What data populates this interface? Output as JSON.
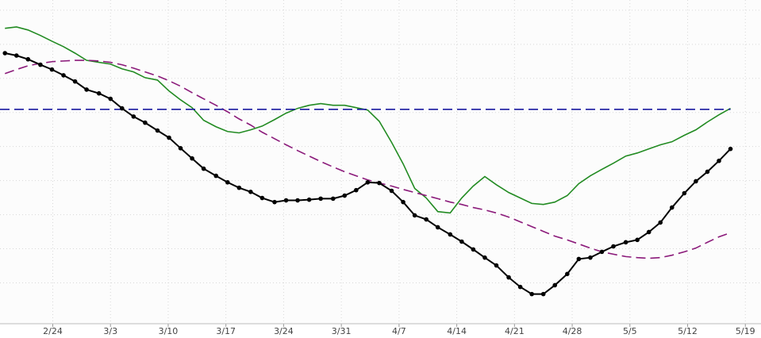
{
  "chart_data": {
    "type": "line",
    "x": [
      -5.8,
      -4.4,
      -3.0,
      -1.5,
      -0.1,
      1.3,
      2.7,
      4.1,
      5.6,
      7.0,
      8.4,
      9.8,
      11.2,
      12.7,
      14.1,
      15.5,
      16.9,
      18.3,
      19.8,
      21.2,
      22.6,
      24.0,
      25.4,
      26.9,
      28.3,
      29.7,
      31.1,
      32.5,
      34.0,
      35.4,
      36.8,
      38.2,
      39.6,
      41.1,
      42.5,
      43.9,
      45.3,
      46.7,
      48.2,
      49.6,
      51.0,
      52.4,
      53.8,
      55.3,
      56.7,
      58.1,
      59.5,
      60.9,
      62.4,
      63.8,
      65.2,
      66.6,
      68.0,
      69.5,
      70.9,
      72.3,
      73.7,
      75.1,
      76.6,
      78.0,
      79.4,
      80.8,
      82.2
    ],
    "series": [
      {
        "color": "#228b22",
        "values": [
          8.47,
          8.51,
          8.42,
          8.26,
          8.09,
          7.93,
          7.74,
          7.53,
          7.47,
          7.42,
          7.28,
          7.19,
          7.02,
          6.95,
          6.63,
          6.37,
          6.14,
          5.77,
          5.58,
          5.44,
          5.4,
          5.49,
          5.6,
          5.79,
          5.98,
          6.12,
          6.21,
          6.26,
          6.21,
          6.21,
          6.14,
          6.07,
          5.74,
          5.12,
          4.49,
          3.77,
          3.49,
          3.09,
          3.05,
          3.49,
          3.84,
          4.12,
          3.88,
          3.65,
          3.49,
          3.33,
          3.3,
          3.37,
          3.56,
          3.91,
          4.14,
          4.33,
          4.51,
          4.72,
          4.81,
          4.93,
          5.05,
          5.14,
          5.33,
          5.49,
          5.72,
          5.93,
          6.12
        ]
      },
      {
        "color": "#8b1a7a",
        "dash": "dashed",
        "values": [
          7.14,
          7.26,
          7.37,
          7.44,
          7.49,
          7.51,
          7.53,
          7.53,
          7.51,
          7.47,
          7.4,
          7.3,
          7.19,
          7.07,
          6.93,
          6.77,
          6.58,
          6.4,
          6.21,
          6.02,
          5.81,
          5.63,
          5.42,
          5.23,
          5.05,
          4.88,
          4.72,
          4.56,
          4.4,
          4.26,
          4.14,
          4.02,
          3.93,
          3.84,
          3.74,
          3.65,
          3.56,
          3.47,
          3.37,
          3.3,
          3.21,
          3.14,
          3.05,
          2.93,
          2.79,
          2.65,
          2.51,
          2.37,
          2.26,
          2.14,
          2.02,
          1.91,
          1.84,
          1.77,
          1.74,
          1.72,
          1.74,
          1.81,
          1.91,
          2.02,
          2.19,
          2.35,
          2.47
        ]
      },
      {
        "color": "#1a1aa0",
        "dash": "dashed",
        "x": [
          -6.4,
          82.2
        ],
        "values": [
          6.09,
          6.09
        ]
      },
      {
        "color": "#000000",
        "markers": true,
        "values": [
          7.74,
          7.67,
          7.56,
          7.4,
          7.26,
          7.09,
          6.91,
          6.67,
          6.56,
          6.4,
          6.12,
          5.88,
          5.7,
          5.47,
          5.26,
          4.95,
          4.65,
          4.35,
          4.14,
          3.95,
          3.79,
          3.67,
          3.49,
          3.37,
          3.42,
          3.42,
          3.44,
          3.47,
          3.47,
          3.56,
          3.72,
          3.95,
          3.93,
          3.7,
          3.37,
          2.98,
          2.86,
          2.63,
          2.42,
          2.21,
          1.98,
          1.74,
          1.51,
          1.16,
          0.88,
          0.67,
          0.67,
          0.93,
          1.26,
          1.7,
          1.74,
          1.91,
          2.07,
          2.19,
          2.26,
          2.49,
          2.77,
          3.21,
          3.63,
          3.98,
          4.26,
          4.58,
          4.93
        ]
      }
    ],
    "xlim": [
      -6.4,
      85.9
    ],
    "xticks": [
      {
        "value": 0,
        "label": "2/24"
      },
      {
        "value": 7,
        "label": "3/3"
      },
      {
        "value": 14,
        "label": "3/10"
      },
      {
        "value": 21,
        "label": "3/17"
      },
      {
        "value": 28,
        "label": "3/24"
      },
      {
        "value": 35,
        "label": "3/31"
      },
      {
        "value": 42,
        "label": "4/7"
      },
      {
        "value": 49,
        "label": "4/14"
      },
      {
        "value": 56,
        "label": "4/21"
      },
      {
        "value": 63,
        "label": "4/28"
      },
      {
        "value": 70,
        "label": "5/5"
      },
      {
        "value": 77,
        "label": "5/12"
      },
      {
        "value": 84,
        "label": "5/19"
      }
    ],
    "ylim": [
      -0.2,
      9.3
    ],
    "yticks": [
      1,
      2,
      3,
      4,
      5,
      6,
      7,
      8,
      9
    ],
    "grid": true
  }
}
